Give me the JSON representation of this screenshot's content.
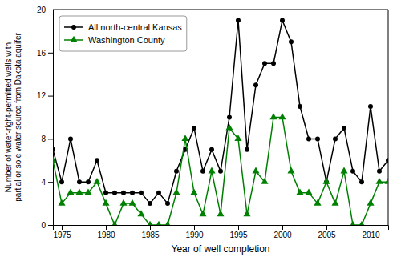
{
  "chart_data": {
    "type": "line",
    "x_label": "Year of well completion",
    "y_label": "Number of water-right-permitted wells with\npartial or sole water source from Dakota aquifer",
    "x": [
      1974,
      1975,
      1976,
      1977,
      1978,
      1979,
      1980,
      1981,
      1982,
      1983,
      1984,
      1985,
      1986,
      1987,
      1988,
      1989,
      1990,
      1991,
      1992,
      1993,
      1994,
      1995,
      1996,
      1997,
      1998,
      1999,
      2000,
      2001,
      2002,
      2003,
      2004,
      2005,
      2006,
      2007,
      2008,
      2009,
      2010,
      2011,
      2012
    ],
    "series": [
      {
        "name": "All north-central Kansas",
        "color": "#000000",
        "marker": "circle",
        "values": [
          7,
          4,
          8,
          4,
          4,
          6,
          3,
          3,
          3,
          3,
          3,
          2,
          3,
          2,
          5,
          7,
          9,
          5,
          7,
          5,
          10,
          19,
          7,
          13,
          15,
          15,
          19,
          17,
          11,
          8,
          8,
          4,
          8,
          9,
          5,
          4,
          11,
          5,
          6
        ]
      },
      {
        "name": "Washington County",
        "color": "#008000",
        "marker": "triangle",
        "values": [
          6,
          2,
          3,
          3,
          3,
          4,
          2,
          0,
          2,
          2,
          1,
          0,
          0,
          0,
          3,
          8,
          3,
          1,
          5,
          1,
          9,
          8,
          1,
          5,
          4,
          10,
          10,
          5,
          3,
          3,
          2,
          4,
          2,
          5,
          0,
          0,
          2,
          4,
          4
        ]
      }
    ],
    "xlim": [
      1974,
      2012
    ],
    "ylim": [
      0,
      20
    ],
    "xticks": [
      1975,
      1980,
      1985,
      1990,
      1995,
      2000,
      2005,
      2010
    ],
    "yticks": [
      0,
      4,
      8,
      12,
      16,
      20
    ],
    "legend": "upper-left",
    "grid": false
  }
}
